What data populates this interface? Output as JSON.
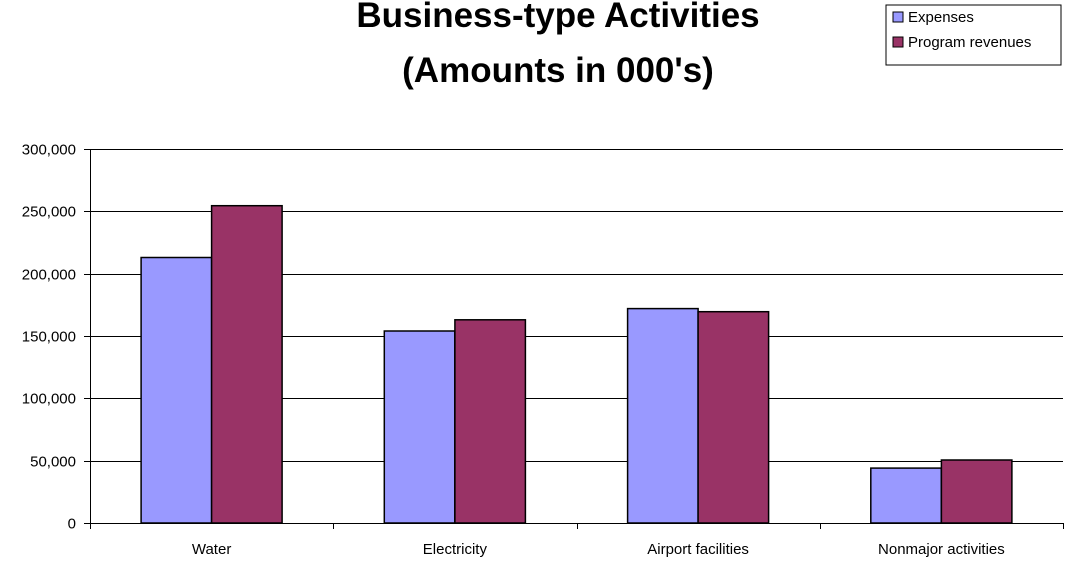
{
  "chart_data": {
    "type": "bar",
    "title_lines": [
      "Business-type Activities",
      "(Amounts in 000's)"
    ],
    "xlabel": "",
    "ylabel": "",
    "categories": [
      "Water",
      "Electricity",
      "Airport facilities",
      "Nonmajor activities"
    ],
    "series": [
      {
        "name": "Expenses",
        "color": "#9999ff",
        "values": [
          213000,
          154000,
          172000,
          44000
        ]
      },
      {
        "name": "Program revenues",
        "color": "#993366",
        "values": [
          254500,
          163000,
          169500,
          50500
        ]
      }
    ],
    "ylim": [
      0,
      300000
    ],
    "yticks": [
      0,
      50000,
      100000,
      150000,
      200000,
      250000,
      300000
    ],
    "ytick_labels": [
      "0",
      "50,000",
      "100,000",
      "150,000",
      "200,000",
      "250,000",
      "300,000"
    ],
    "grid": true,
    "legend_position": "top-right"
  }
}
